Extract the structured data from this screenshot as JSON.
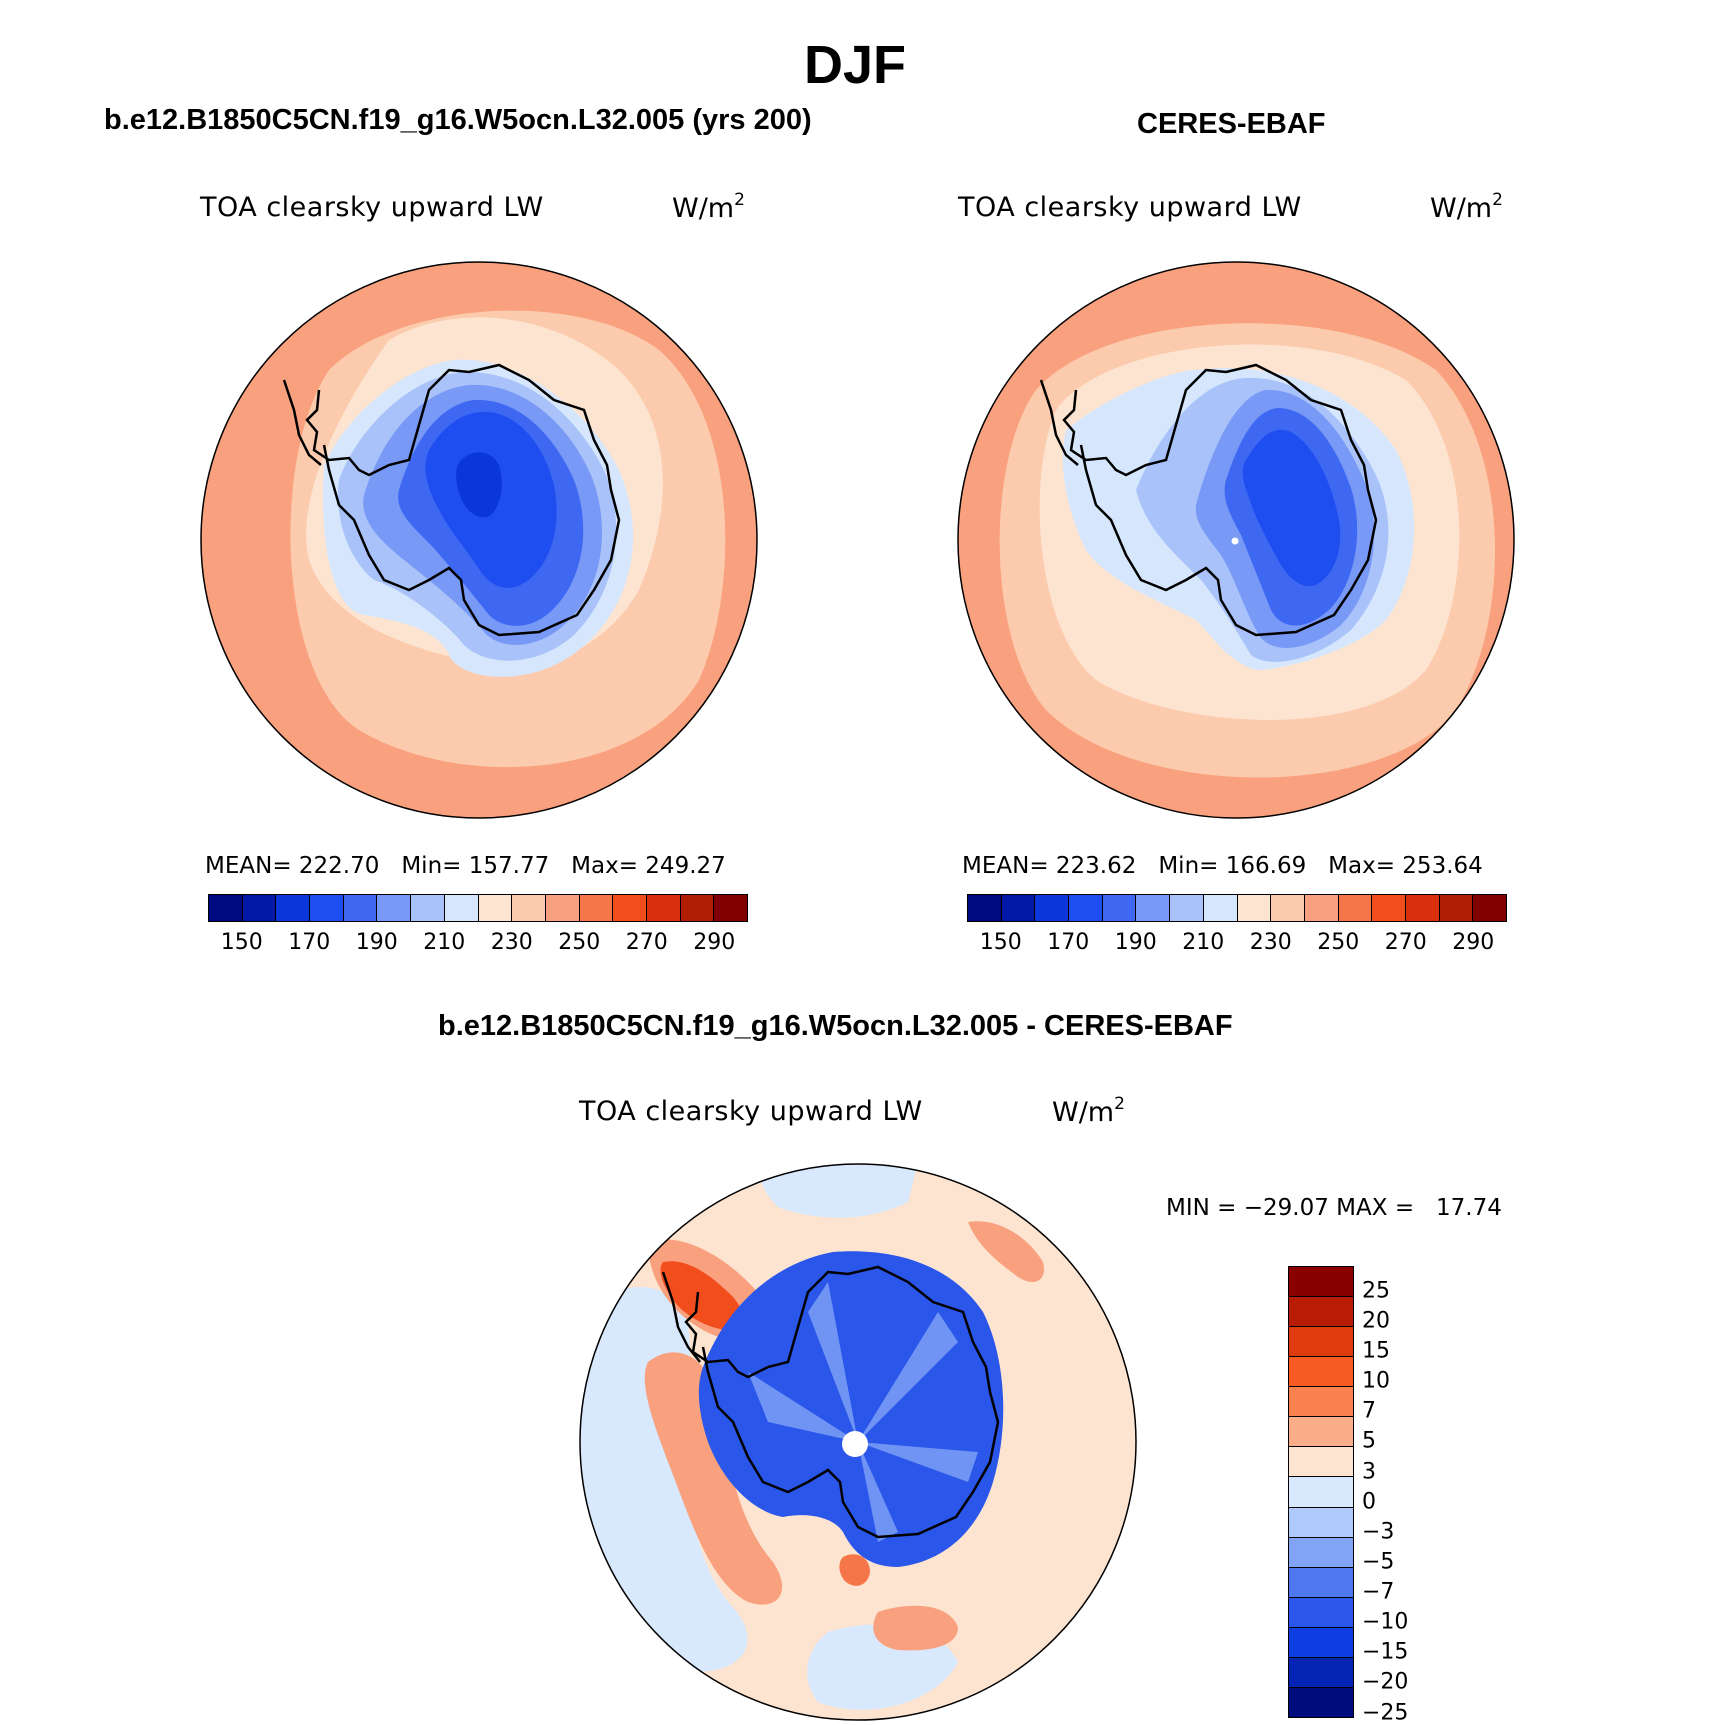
{
  "title": "DJF",
  "panels": [
    {
      "case_title": "b.e12.B1850C5CN.f19_g16.W5ocn.L32.005 (yrs 200)",
      "label": "TOA clearsky upward LW",
      "units": "W/m",
      "units_sup": "2",
      "mean_label": "MEAN= ",
      "mean": "222.70",
      "min_label": "Min= ",
      "min": "157.77",
      "max_label": "Max= ",
      "max": "249.27"
    },
    {
      "case_title": "CERES-EBAF",
      "label": "TOA clearsky upward LW",
      "units": "W/m",
      "units_sup": "2",
      "mean_label": "MEAN= ",
      "mean": "223.62",
      "min_label": "Min= ",
      "min": "166.69",
      "max_label": "Max= ",
      "max": "253.64"
    }
  ],
  "diff_panel": {
    "case_title": "b.e12.B1850C5CN.f19_g16.W5ocn.L32.005 - CERES-EBAF",
    "label": "TOA clearsky upward LW",
    "units": "W/m",
    "units_sup": "2",
    "min_label": "MIN = ",
    "min": "−29.07",
    "max_label": "MAX = ",
    "max": "17.74"
  },
  "abs_colorbar": {
    "colors": [
      "#000a80",
      "#0219a8",
      "#0b36d9",
      "#1f4ef0",
      "#3e68f2",
      "#7999f6",
      "#a9c3fa",
      "#d6e7fd",
      "#fde4d0",
      "#fccaad",
      "#f9a17e",
      "#f57648",
      "#f24d1d",
      "#d92f0c",
      "#b01e06",
      "#800000"
    ],
    "tick_labels": [
      "150",
      "170",
      "190",
      "210",
      "230",
      "250",
      "270",
      "290"
    ]
  },
  "diff_colorbar": {
    "colors_top_to_bottom": [
      "#8a0000",
      "#b81c05",
      "#e03a0f",
      "#f75a22",
      "#f98150",
      "#fbad8a",
      "#fde4d0",
      "#d8e8fd",
      "#aec9fa",
      "#82a4f6",
      "#4f78ef",
      "#2a57ea",
      "#0e3ee1",
      "#0424b4",
      "#000c7c"
    ],
    "tick_labels": [
      "25",
      "20",
      "15",
      "10",
      "7",
      "5",
      "3",
      "0",
      "−3",
      "−5",
      "−7",
      "−10",
      "−15",
      "−20",
      "−25"
    ]
  },
  "map_colors": {
    "outer_warm": "#f9a17e",
    "mid_warm": "#fccaad",
    "light_warm": "#fde4d0",
    "lightest_blue": "#d6e7fd",
    "light_blue": "#a9c3fa",
    "mid_blue": "#7999f6",
    "blue": "#3e68f2",
    "deep_blue": "#1f4ef0",
    "deepest_blue": "#0b36d9",
    "diff_red": "#f24d1d",
    "diff_salmon": "#f9a17e",
    "diff_peach": "#fde4d0",
    "diff_pale_blue": "#d8e8fd",
    "diff_blue": "#2a57ea"
  }
}
